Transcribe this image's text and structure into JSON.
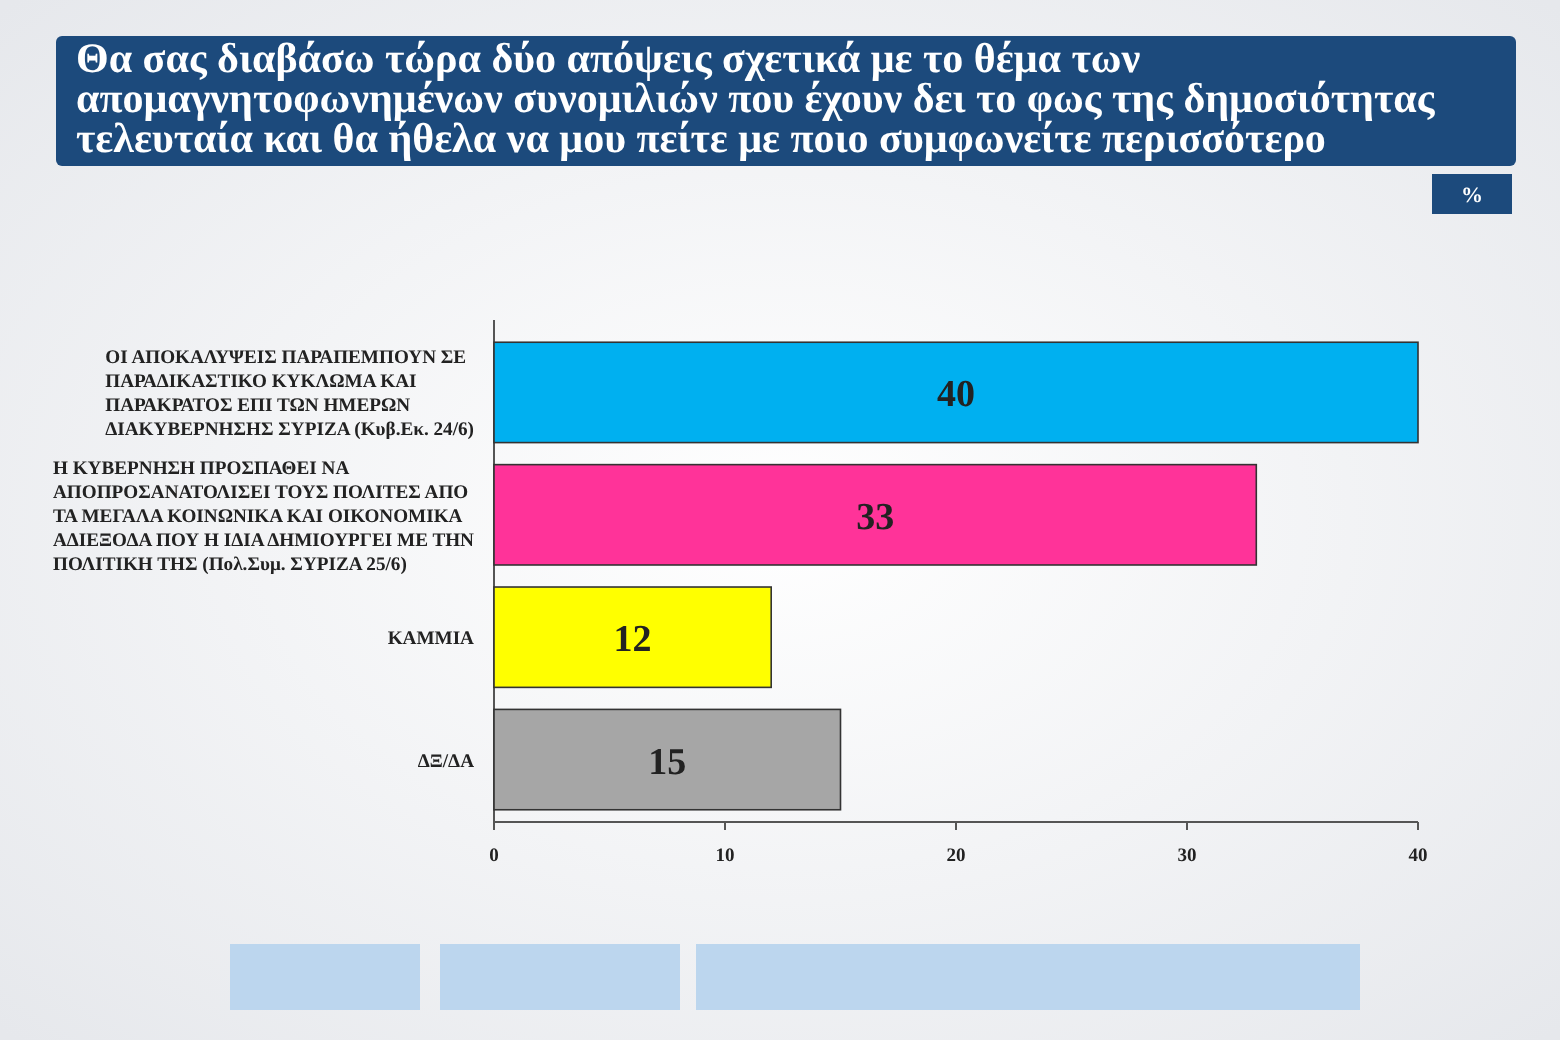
{
  "chart_data": {
    "type": "bar",
    "orientation": "horizontal",
    "title": "Θα σας διαβάσω τώρα δύο απόψεις σχετικά με το θέμα των απομαγνητοφωνημένων συνομιλιών που έχουν δει το φως της δημοσιότητας τελευταία και θα ήθελα να μου πείτε με ποιο συμφωνείτε περισσότερο",
    "annotations": [
      "%"
    ],
    "categories": [
      "ΟΙ ΑΠΟΚΑΛΥΨΕΙΣ ΠΑΡΑΠΕΜΠΟΥΝ ΣΕ ΠΑΡΑΔΙΚΑΣΤΙΚΟ ΚΥΚΛΩΜΑ ΚΑΙ ΠΑΡΑΚΡΑΤΟΣ ΕΠΙ ΤΩΝ ΗΜΕΡΩΝ ΔΙΑΚΥΒΕΡΝΗΣΗΣ ΣΥΡΙΖΑ (Κυβ.Εκ. 24/6)",
      "Η ΚΥΒΕΡΝΗΣΗ ΠΡΟΣΠΑΘΕΙ ΝΑ ΑΠΟΠΡΟΣΑΝΑΤΟΛΙΣΕΙ ΤΟΥΣ ΠΟΛΙΤΕΣ ΑΠΟ ΤΑ ΜΕΓΑΛΑ ΚΟΙΝΩΝΙΚΑ ΚΑΙ ΟΙΚΟΝΟΜΙΚΑ ΑΔΙΕΞΟΔΑ ΠΟΥ Η ΙΔΙΑ ΔΗΜΙΟΥΡΓΕΙ ΜΕ ΤΗΝ ΠΟΛΙΤΙΚΗ ΤΗΣ (Πολ.Συμ. ΣΥΡΙΖΑ 25/6)",
      "ΚΑΜΜΙΑ",
      "ΔΞ/ΔΑ"
    ],
    "values": [
      40,
      33,
      12,
      15
    ],
    "colors": [
      "#00b0f0",
      "#ff3399",
      "#ffff00",
      "#a6a6a6"
    ],
    "xlim": [
      0,
      40
    ],
    "xticks": [
      0,
      10,
      20,
      30,
      40
    ],
    "data_labels": true
  }
}
